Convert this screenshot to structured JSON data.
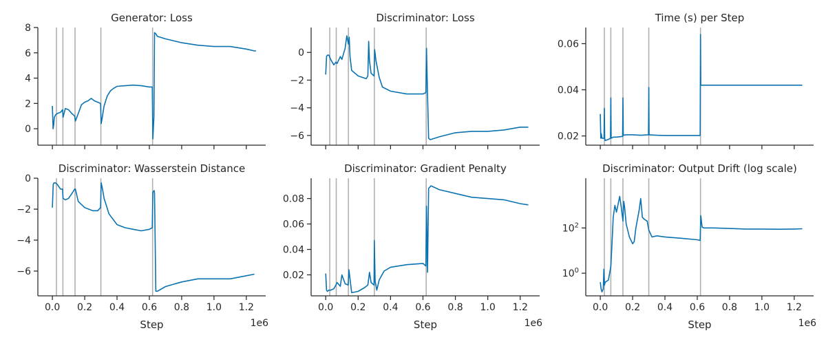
{
  "figure": {
    "xlabel": "Step",
    "x_offset_label": "1e6",
    "colors": {
      "line": "#0a72b0",
      "vline": "#b0b0b0",
      "axis": "#262626"
    }
  },
  "chart_data": [
    {
      "type": "line",
      "title": "Generator: Loss",
      "xlim": [
        -0.09,
        1.32
      ],
      "ylim": [
        -1.3,
        8.0
      ],
      "yticks": [
        0,
        2,
        4,
        6,
        8
      ],
      "ytick_labels": [
        "0",
        "2",
        "4",
        "6",
        "8"
      ],
      "xticks": [
        0.0,
        0.2,
        0.4,
        0.6,
        0.8,
        1.0,
        1.2
      ],
      "xtick_labels": [],
      "vlines": [
        0.025,
        0.065,
        0.14,
        0.3,
        0.62
      ],
      "series": [
        {
          "name": "loss",
          "x": [
            0.0,
            0.004,
            0.008,
            0.012,
            0.02,
            0.03,
            0.05,
            0.063,
            0.066,
            0.08,
            0.1,
            0.12,
            0.138,
            0.142,
            0.16,
            0.18,
            0.2,
            0.22,
            0.24,
            0.26,
            0.28,
            0.298,
            0.302,
            0.31,
            0.32,
            0.34,
            0.36,
            0.38,
            0.4,
            0.45,
            0.5,
            0.55,
            0.6,
            0.618,
            0.622,
            0.628,
            0.632,
            0.64,
            0.65,
            0.7,
            0.8,
            0.9,
            1.0,
            1.1,
            1.2,
            1.25,
            1.26
          ],
          "y": [
            1.8,
            0.0,
            0.3,
            0.9,
            1.1,
            1.2,
            1.3,
            1.5,
            0.9,
            1.6,
            1.5,
            1.2,
            1.0,
            0.6,
            1.2,
            1.9,
            2.1,
            2.2,
            2.4,
            2.2,
            2.1,
            2.0,
            0.4,
            1.0,
            1.8,
            2.6,
            3.0,
            3.2,
            3.35,
            3.4,
            3.45,
            3.4,
            3.3,
            3.3,
            -0.8,
            0.9,
            7.6,
            7.5,
            7.3,
            7.1,
            6.8,
            6.6,
            6.5,
            6.5,
            6.3,
            6.15,
            6.15
          ]
        }
      ]
    },
    {
      "type": "line",
      "title": "Discriminator: Loss",
      "xlim": [
        -0.09,
        1.32
      ],
      "ylim": [
        -6.7,
        1.8
      ],
      "yticks": [
        0,
        -2,
        -4,
        -6
      ],
      "ytick_labels": [
        "0",
        "−2",
        "−4",
        "−6"
      ],
      "xticks": [
        0.0,
        0.2,
        0.4,
        0.6,
        0.8,
        1.0,
        1.2
      ],
      "xtick_labels": [],
      "vlines": [
        0.025,
        0.065,
        0.14,
        0.3,
        0.62
      ],
      "series": [
        {
          "name": "loss",
          "x": [
            0.0,
            0.005,
            0.01,
            0.02,
            0.03,
            0.05,
            0.063,
            0.07,
            0.09,
            0.1,
            0.12,
            0.13,
            0.14,
            0.145,
            0.15,
            0.16,
            0.2,
            0.25,
            0.26,
            0.265,
            0.27,
            0.28,
            0.298,
            0.302,
            0.31,
            0.33,
            0.35,
            0.4,
            0.5,
            0.6,
            0.618,
            0.622,
            0.628,
            0.635,
            0.645,
            0.7,
            0.8,
            0.9,
            1.0,
            1.1,
            1.2,
            1.25
          ],
          "y": [
            -1.6,
            -0.3,
            -0.2,
            -0.2,
            -0.5,
            -0.9,
            -0.7,
            -0.8,
            -0.3,
            -0.5,
            0.3,
            1.2,
            0.6,
            1.1,
            -0.3,
            -1.3,
            -1.7,
            -1.9,
            -1.7,
            0.8,
            -0.6,
            -1.5,
            -1.7,
            0.2,
            -0.6,
            -1.8,
            -2.5,
            -2.8,
            -3.0,
            -3.0,
            -2.9,
            0.3,
            -3.0,
            -6.2,
            -6.3,
            -6.1,
            -5.8,
            -5.7,
            -5.7,
            -5.6,
            -5.4,
            -5.4
          ]
        }
      ]
    },
    {
      "type": "line",
      "title": "Time (s) per Step",
      "xlim": [
        -0.09,
        1.32
      ],
      "ylim": [
        0.016,
        0.067
      ],
      "yticks": [
        0.02,
        0.04,
        0.06
      ],
      "ytick_labels": [
        "0.02",
        "0.04",
        "0.06"
      ],
      "xticks": [
        0.0,
        0.2,
        0.4,
        0.6,
        0.8,
        1.0,
        1.2
      ],
      "xtick_labels": [],
      "vlines": [
        0.025,
        0.065,
        0.14,
        0.3,
        0.62
      ],
      "series": [
        {
          "name": "time",
          "x": [
            0.0,
            0.003,
            0.006,
            0.01,
            0.023,
            0.025,
            0.027,
            0.03,
            0.05,
            0.063,
            0.065,
            0.067,
            0.08,
            0.1,
            0.138,
            0.14,
            0.142,
            0.16,
            0.2,
            0.25,
            0.298,
            0.3,
            0.302,
            0.35,
            0.4,
            0.5,
            0.6,
            0.618,
            0.62,
            0.622,
            0.624,
            0.7,
            0.8,
            0.9,
            1.0,
            1.1,
            1.2,
            1.25
          ],
          "y": [
            0.0295,
            0.019,
            0.021,
            0.019,
            0.019,
            0.032,
            0.019,
            0.018,
            0.0185,
            0.019,
            0.0365,
            0.019,
            0.0195,
            0.0195,
            0.0198,
            0.0365,
            0.0203,
            0.0205,
            0.0205,
            0.0203,
            0.0205,
            0.041,
            0.0205,
            0.0203,
            0.0202,
            0.0202,
            0.0202,
            0.0202,
            0.064,
            0.042,
            0.042,
            0.042,
            0.042,
            0.042,
            0.042,
            0.042,
            0.042,
            0.042
          ]
        }
      ]
    },
    {
      "type": "line",
      "title": "Discriminator: Wasserstein Distance",
      "xlim": [
        -0.09,
        1.32
      ],
      "ylim": [
        -7.6,
        0.0
      ],
      "yticks": [
        0,
        -2,
        -4,
        -6
      ],
      "ytick_labels": [
        "0",
        "−2",
        "−4",
        "−6"
      ],
      "xticks": [
        0.0,
        0.2,
        0.4,
        0.6,
        0.8,
        1.0,
        1.2
      ],
      "xtick_labels": [
        "0.0",
        "0.2",
        "0.4",
        "0.6",
        "0.8",
        "1.0",
        "1.2"
      ],
      "vlines": [
        0.025,
        0.065,
        0.14,
        0.3,
        0.62
      ],
      "series": [
        {
          "name": "distance",
          "x": [
            0.0,
            0.005,
            0.01,
            0.02,
            0.03,
            0.05,
            0.063,
            0.066,
            0.08,
            0.1,
            0.12,
            0.138,
            0.142,
            0.16,
            0.2,
            0.25,
            0.28,
            0.298,
            0.302,
            0.31,
            0.32,
            0.35,
            0.4,
            0.45,
            0.5,
            0.55,
            0.6,
            0.618,
            0.622,
            0.63,
            0.632,
            0.64,
            0.65,
            0.7,
            0.8,
            0.9,
            1.0,
            1.1,
            1.2,
            1.25
          ],
          "y": [
            -1.9,
            -0.4,
            -0.3,
            -0.3,
            -0.4,
            -0.7,
            -0.7,
            -1.3,
            -1.4,
            -1.3,
            -1.0,
            -0.7,
            -0.7,
            -1.5,
            -1.9,
            -2.1,
            -2.1,
            -1.9,
            -0.3,
            -0.7,
            -1.3,
            -2.3,
            -3.0,
            -3.2,
            -3.3,
            -3.4,
            -3.3,
            -3.2,
            -0.9,
            -0.8,
            -1.0,
            -7.3,
            -7.3,
            -7.0,
            -6.7,
            -6.5,
            -6.5,
            -6.5,
            -6.3,
            -6.2
          ]
        }
      ]
    },
    {
      "type": "line",
      "title": "Discriminator: Gradient Penalty",
      "xlim": [
        -0.09,
        1.32
      ],
      "ylim": [
        0.0035,
        0.096
      ],
      "yticks": [
        0.02,
        0.04,
        0.06,
        0.08
      ],
      "ytick_labels": [
        "0.02",
        "0.04",
        "0.06",
        "0.08"
      ],
      "xticks": [
        0.0,
        0.2,
        0.4,
        0.6,
        0.8,
        1.0,
        1.2
      ],
      "xtick_labels": [
        "0.0",
        "0.2",
        "0.4",
        "0.6",
        "0.8",
        "1.0",
        "1.2"
      ],
      "vlines": [
        0.025,
        0.065,
        0.14,
        0.3,
        0.62
      ],
      "series": [
        {
          "name": "penalty",
          "x": [
            0.0,
            0.005,
            0.01,
            0.02,
            0.03,
            0.05,
            0.063,
            0.07,
            0.09,
            0.1,
            0.12,
            0.138,
            0.14,
            0.143,
            0.16,
            0.2,
            0.24,
            0.26,
            0.27,
            0.28,
            0.298,
            0.3,
            0.305,
            0.315,
            0.33,
            0.36,
            0.4,
            0.5,
            0.6,
            0.618,
            0.622,
            0.628,
            0.635,
            0.65,
            0.7,
            0.8,
            0.9,
            1.0,
            1.1,
            1.2,
            1.25
          ],
          "y": [
            0.021,
            0.008,
            0.007,
            0.008,
            0.008,
            0.009,
            0.012,
            0.014,
            0.011,
            0.02,
            0.013,
            0.012,
            0.016,
            0.024,
            0.006,
            0.007,
            0.01,
            0.012,
            0.022,
            0.014,
            0.012,
            0.047,
            0.015,
            0.008,
            0.016,
            0.023,
            0.026,
            0.028,
            0.029,
            0.027,
            0.074,
            0.022,
            0.088,
            0.09,
            0.087,
            0.084,
            0.081,
            0.08,
            0.079,
            0.076,
            0.075
          ]
        }
      ]
    },
    {
      "type": "line",
      "title": "Discriminator: Output Drift (log scale)",
      "yscale": "log",
      "xlim": [
        -0.09,
        1.32
      ],
      "ylog_range": [
        -1.0,
        4.2
      ],
      "yticks": [
        1,
        100
      ],
      "ytick_base": [
        "10",
        "10"
      ],
      "ytick_exp": [
        "0",
        "2"
      ],
      "xticks": [
        0.0,
        0.2,
        0.4,
        0.6,
        0.8,
        1.0,
        1.2
      ],
      "xtick_labels": [
        "0.0",
        "0.2",
        "0.4",
        "0.6",
        "0.8",
        "1.0",
        "1.2"
      ],
      "vlines": [
        0.025,
        0.065,
        0.14,
        0.3,
        0.62
      ],
      "series": [
        {
          "name": "drift",
          "x": [
            0.0,
            0.005,
            0.01,
            0.018,
            0.022,
            0.026,
            0.03,
            0.05,
            0.065,
            0.07,
            0.08,
            0.09,
            0.1,
            0.12,
            0.13,
            0.14,
            0.145,
            0.15,
            0.16,
            0.18,
            0.2,
            0.21,
            0.22,
            0.24,
            0.25,
            0.26,
            0.27,
            0.29,
            0.3,
            0.32,
            0.35,
            0.4,
            0.5,
            0.6,
            0.618,
            0.622,
            0.63,
            0.64,
            0.7,
            0.8,
            0.9,
            1.0,
            1.1,
            1.2,
            1.25
          ],
          "y": [
            0.4,
            0.2,
            0.15,
            0.2,
            1.5,
            0.3,
            0.4,
            0.5,
            2.0,
            10.0,
            300,
            1000,
            500,
            2500,
            800,
            200,
            1500,
            900,
            150,
            40,
            20,
            25,
            100,
            600,
            2000,
            300,
            250,
            200,
            80,
            40,
            45,
            40,
            35,
            30,
            28,
            350,
            110,
            100,
            100,
            95,
            90,
            90,
            88,
            90,
            92
          ]
        }
      ]
    }
  ]
}
